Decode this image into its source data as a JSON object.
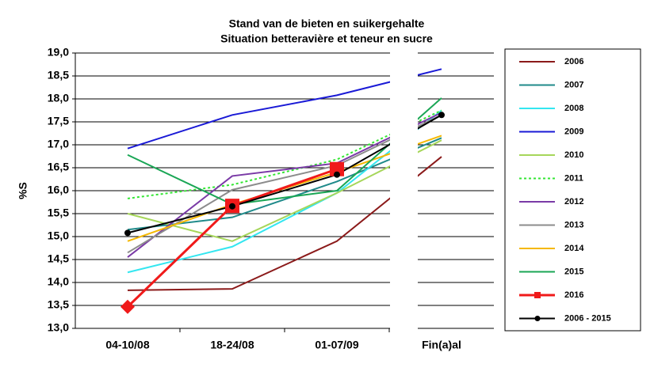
{
  "chart_data": {
    "type": "line",
    "title": "Stand van de bieten en suikergehalte",
    "subtitle": "Situation betteravière et teneur en sucre",
    "y_label": "%S",
    "categories": [
      "04-10/08",
      "18-24/08",
      "01-07/09",
      "Fin(a)al"
    ],
    "ylim": [
      13,
      19
    ],
    "yticks": [
      {
        "value": 13,
        "label": "13,0"
      },
      {
        "value": 13.5,
        "label": "13,5"
      },
      {
        "value": 14,
        "label": "14,0"
      },
      {
        "value": 14.5,
        "label": "14,5"
      },
      {
        "value": 15,
        "label": "15,0"
      },
      {
        "value": 15.5,
        "label": "15,5"
      },
      {
        "value": 16,
        "label": "16,0"
      },
      {
        "value": 16.5,
        "label": "16,5"
      },
      {
        "value": 17,
        "label": "17,0"
      },
      {
        "value": 17.5,
        "label": "17,5"
      },
      {
        "value": 18,
        "label": "18,0"
      },
      {
        "value": 18.5,
        "label": "18,5"
      },
      {
        "value": 19,
        "label": "19,0"
      }
    ],
    "grid": true,
    "series": [
      {
        "name": "2006",
        "color": "#8b1a1a",
        "values": [
          13.83,
          13.86,
          14.9,
          16.74
        ]
      },
      {
        "name": "2007",
        "color": "#1f8a8a",
        "values": [
          15.15,
          15.42,
          16.2,
          17.15
        ]
      },
      {
        "name": "2008",
        "color": "#33e6f0",
        "values": [
          14.22,
          14.78,
          15.95,
          17.75
        ]
      },
      {
        "name": "2009",
        "color": "#1a1ad6",
        "values": [
          16.92,
          17.65,
          18.08,
          18.65
        ]
      },
      {
        "name": "2010",
        "color": "#a6d65a",
        "values": [
          15.5,
          14.9,
          15.95,
          17.1
        ]
      },
      {
        "name": "2011",
        "color": "#33e633",
        "dash": true,
        "values": [
          15.83,
          16.13,
          16.68,
          17.75
        ]
      },
      {
        "name": "2012",
        "color": "#7a3aa6",
        "values": [
          14.55,
          16.32,
          16.6,
          17.7
        ]
      },
      {
        "name": "2013",
        "color": "#8c8c8c",
        "values": [
          14.65,
          16.02,
          16.55,
          17.65
        ]
      },
      {
        "name": "2014",
        "color": "#f5b800",
        "values": [
          14.9,
          15.7,
          16.4,
          17.2
        ]
      },
      {
        "name": "2015",
        "color": "#1aa655",
        "values": [
          16.78,
          15.7,
          16.0,
          18.02
        ]
      },
      {
        "name": "2016",
        "color": "#f01a1a",
        "marker": "square",
        "first_marker": "diamond",
        "values": [
          13.47,
          15.67,
          16.47,
          null
        ]
      },
      {
        "name": "2006 - 2015",
        "color": "#000000",
        "marker": "circle",
        "values": [
          15.08,
          15.66,
          16.35,
          17.65
        ]
      }
    ]
  }
}
